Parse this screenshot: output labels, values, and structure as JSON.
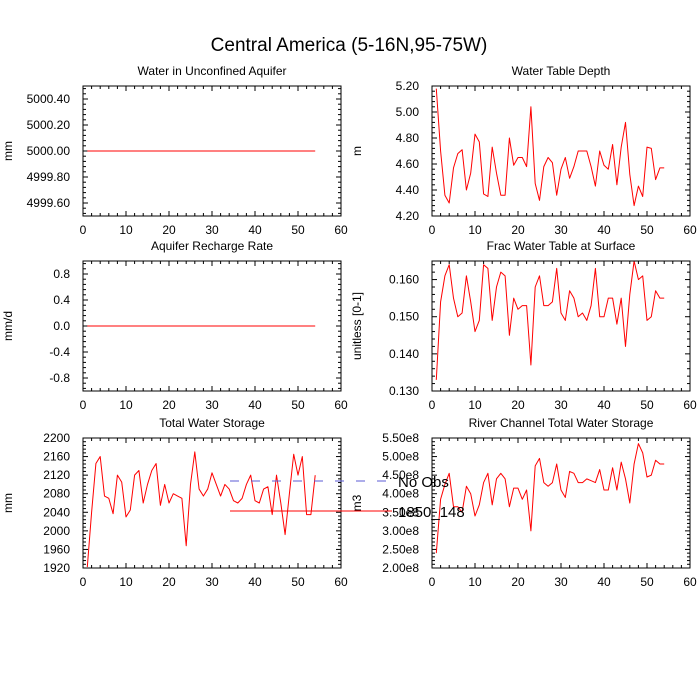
{
  "title": "Central America (5-16N,95-75W)",
  "legend": {
    "placement": "bottom-center",
    "entries": [
      {
        "label": "No Obs",
        "color": "#5b5bd6",
        "dash": "dashed"
      },
      {
        "label": "1850_148",
        "color": "#ff0000",
        "dash": "solid"
      }
    ]
  },
  "chart_data": [
    {
      "type": "line",
      "title": "Water in Unconfined Aquifer",
      "ylabel": "mm",
      "xlim": [
        0,
        60
      ],
      "ylim": [
        4999.5,
        5000.5
      ],
      "xticks": [
        0,
        10,
        20,
        30,
        40,
        50,
        60
      ],
      "yticks": [
        4999.6,
        4999.8,
        5000.0,
        5000.2,
        5000.4
      ],
      "ytick_labels": [
        "4999.60",
        "4999.80",
        "5000.00",
        "5000.20",
        "5000.40"
      ],
      "series": [
        {
          "name": "1850_148",
          "color": "#ff0000",
          "x_start": 1,
          "values": [
            5000,
            5000,
            5000,
            5000,
            5000,
            5000,
            5000,
            5000,
            5000,
            5000,
            5000,
            5000,
            5000,
            5000,
            5000,
            5000,
            5000,
            5000,
            5000,
            5000,
            5000,
            5000,
            5000,
            5000,
            5000,
            5000,
            5000,
            5000,
            5000,
            5000,
            5000,
            5000,
            5000,
            5000,
            5000,
            5000,
            5000,
            5000,
            5000,
            5000,
            5000,
            5000,
            5000,
            5000,
            5000,
            5000,
            5000,
            5000,
            5000,
            5000,
            5000,
            5000,
            5000,
            5000
          ]
        }
      ]
    },
    {
      "type": "line",
      "title": "Water Table Depth",
      "ylabel": "m",
      "xlim": [
        0,
        60
      ],
      "ylim": [
        4.2,
        5.2
      ],
      "xticks": [
        0,
        10,
        20,
        30,
        40,
        50,
        60
      ],
      "yticks": [
        4.2,
        4.4,
        4.6,
        4.8,
        5.0,
        5.2
      ],
      "ytick_labels": [
        "4.20",
        "4.40",
        "4.60",
        "4.80",
        "5.00",
        "5.20"
      ],
      "series": [
        {
          "name": "1850_148",
          "color": "#ff0000",
          "x_start": 1,
          "values": [
            5.18,
            4.7,
            4.36,
            4.3,
            4.57,
            4.68,
            4.71,
            4.4,
            4.53,
            4.83,
            4.77,
            4.37,
            4.35,
            4.73,
            4.53,
            4.36,
            4.36,
            4.8,
            4.59,
            4.65,
            4.65,
            4.58,
            5.04,
            4.45,
            4.32,
            4.58,
            4.65,
            4.61,
            4.36,
            4.56,
            4.65,
            4.49,
            4.58,
            4.7,
            4.7,
            4.7,
            4.58,
            4.43,
            4.7,
            4.59,
            4.56,
            4.75,
            4.44,
            4.73,
            4.92,
            4.52,
            4.28,
            4.43,
            4.35,
            4.73,
            4.72,
            4.48,
            4.57,
            4.57
          ]
        }
      ]
    },
    {
      "type": "line",
      "title": "Aquifer Recharge Rate",
      "ylabel": "mm/d",
      "xlim": [
        0,
        60
      ],
      "ylim": [
        -1.0,
        1.0
      ],
      "xticks": [
        0,
        10,
        20,
        30,
        40,
        50,
        60
      ],
      "yticks": [
        -0.8,
        -0.4,
        0.0,
        0.4,
        0.8
      ],
      "ytick_labels": [
        "-0.8",
        "-0.4",
        "0.0",
        "0.4",
        "0.8"
      ],
      "series": [
        {
          "name": "1850_148",
          "color": "#ff0000",
          "x_start": 1,
          "values": [
            0,
            0,
            0,
            0,
            0,
            0,
            0,
            0,
            0,
            0,
            0,
            0,
            0,
            0,
            0,
            0,
            0,
            0,
            0,
            0,
            0,
            0,
            0,
            0,
            0,
            0,
            0,
            0,
            0,
            0,
            0,
            0,
            0,
            0,
            0,
            0,
            0,
            0,
            0,
            0,
            0,
            0,
            0,
            0,
            0,
            0,
            0,
            0,
            0,
            0,
            0,
            0,
            0,
            0
          ]
        }
      ]
    },
    {
      "type": "line",
      "title": "Frac Water Table at Surface",
      "ylabel": "unitless [0-1]",
      "xlim": [
        0,
        60
      ],
      "ylim": [
        0.13,
        0.165
      ],
      "xticks": [
        0,
        10,
        20,
        30,
        40,
        50,
        60
      ],
      "yticks": [
        0.13,
        0.14,
        0.15,
        0.16
      ],
      "ytick_labels": [
        "0.130",
        "0.140",
        "0.150",
        "0.160"
      ],
      "series": [
        {
          "name": "1850_148",
          "color": "#ff0000",
          "x_start": 1,
          "values": [
            0.133,
            0.154,
            0.161,
            0.164,
            0.155,
            0.15,
            0.151,
            0.161,
            0.154,
            0.146,
            0.149,
            0.164,
            0.163,
            0.149,
            0.158,
            0.162,
            0.161,
            0.145,
            0.155,
            0.152,
            0.153,
            0.153,
            0.137,
            0.158,
            0.161,
            0.153,
            0.153,
            0.154,
            0.163,
            0.151,
            0.149,
            0.157,
            0.155,
            0.15,
            0.151,
            0.149,
            0.153,
            0.163,
            0.15,
            0.15,
            0.155,
            0.155,
            0.148,
            0.155,
            0.142,
            0.156,
            0.165,
            0.16,
            0.161,
            0.149,
            0.15,
            0.157,
            0.155,
            0.155
          ]
        }
      ]
    },
    {
      "type": "line",
      "title": "Total Water Storage",
      "ylabel": "mm",
      "xlim": [
        0,
        60
      ],
      "ylim": [
        1920,
        2200
      ],
      "xticks": [
        0,
        10,
        20,
        30,
        40,
        50,
        60
      ],
      "yticks": [
        1920,
        1960,
        2000,
        2040,
        2080,
        2120,
        2160,
        2200
      ],
      "ytick_labels": [
        "1920",
        "1960",
        "2000",
        "2040",
        "2080",
        "2120",
        "2160",
        "2200"
      ],
      "series": [
        {
          "name": "1850_148",
          "color": "#ff0000",
          "x_start": 1,
          "values": [
            1922,
            2040,
            2145,
            2160,
            2075,
            2070,
            2037,
            2120,
            2105,
            2030,
            2045,
            2120,
            2130,
            2060,
            2100,
            2130,
            2145,
            2055,
            2100,
            2060,
            2080,
            2075,
            2070,
            1968,
            2100,
            2170,
            2090,
            2075,
            2090,
            2125,
            2100,
            2075,
            2100,
            2090,
            2065,
            2060,
            2070,
            2100,
            2120,
            2065,
            2060,
            2090,
            2095,
            2035,
            2120,
            2060,
            1992,
            2080,
            2165,
            2120,
            2160,
            2035,
            2035,
            2120
          ]
        }
      ]
    },
    {
      "type": "line",
      "title": "River Channel Total Water Storage",
      "ylabel": "m3",
      "xlim": [
        0,
        60
      ],
      "ylim": [
        200000000,
        550000000
      ],
      "xticks": [
        0,
        10,
        20,
        30,
        40,
        50,
        60
      ],
      "yticks": [
        200000000,
        250000000,
        300000000,
        350000000,
        400000000,
        450000000,
        500000000,
        550000000
      ],
      "ytick_labels": [
        "2.00e8",
        "2.50e8",
        "3.00e8",
        "3.50e8",
        "4.00e8",
        "4.50e8",
        "5.00e8",
        "5.50e8"
      ],
      "series": [
        {
          "name": "1850_148",
          "color": "#ff0000",
          "x_start": 1,
          "values": [
            240000000,
            385000000,
            425000000,
            455000000,
            365000000,
            365000000,
            350000000,
            420000000,
            400000000,
            340000000,
            370000000,
            430000000,
            455000000,
            370000000,
            440000000,
            455000000,
            440000000,
            365000000,
            415000000,
            415000000,
            385000000,
            410000000,
            300000000,
            475000000,
            495000000,
            430000000,
            420000000,
            430000000,
            480000000,
            410000000,
            390000000,
            460000000,
            455000000,
            430000000,
            430000000,
            440000000,
            435000000,
            430000000,
            465000000,
            410000000,
            410000000,
            470000000,
            410000000,
            485000000,
            440000000,
            375000000,
            480000000,
            535000000,
            510000000,
            445000000,
            450000000,
            490000000,
            480000000,
            480000000
          ]
        }
      ]
    }
  ]
}
